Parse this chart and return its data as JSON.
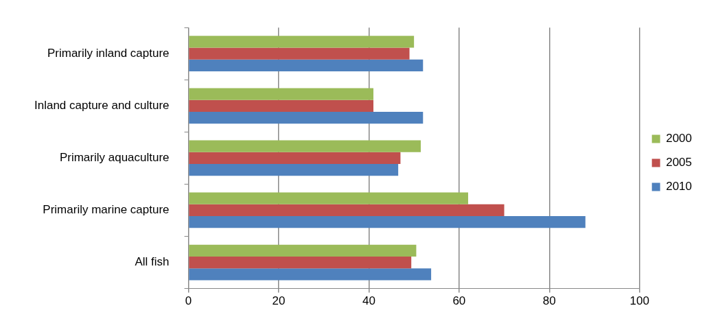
{
  "chart_data": {
    "type": "bar",
    "orientation": "horizontal",
    "categories": [
      "Primarily inland capture",
      "Inland capture and culture",
      "Primarily aquaculture",
      "Primarily marine capture",
      "All fish"
    ],
    "series": [
      {
        "name": "2000",
        "color": "#9bbb59",
        "values": [
          50,
          41,
          51.5,
          62,
          50.5
        ]
      },
      {
        "name": "2005",
        "color": "#c0504d",
        "values": [
          49,
          41,
          47,
          70,
          49.4
        ]
      },
      {
        "name": "2010",
        "color": "#4f81bd",
        "values": [
          52,
          52,
          46.5,
          88,
          53.8
        ]
      }
    ],
    "xlim": [
      0,
      100
    ],
    "xticks": [
      0,
      20,
      40,
      60,
      80,
      100
    ],
    "grid": "x",
    "legend": "right"
  }
}
